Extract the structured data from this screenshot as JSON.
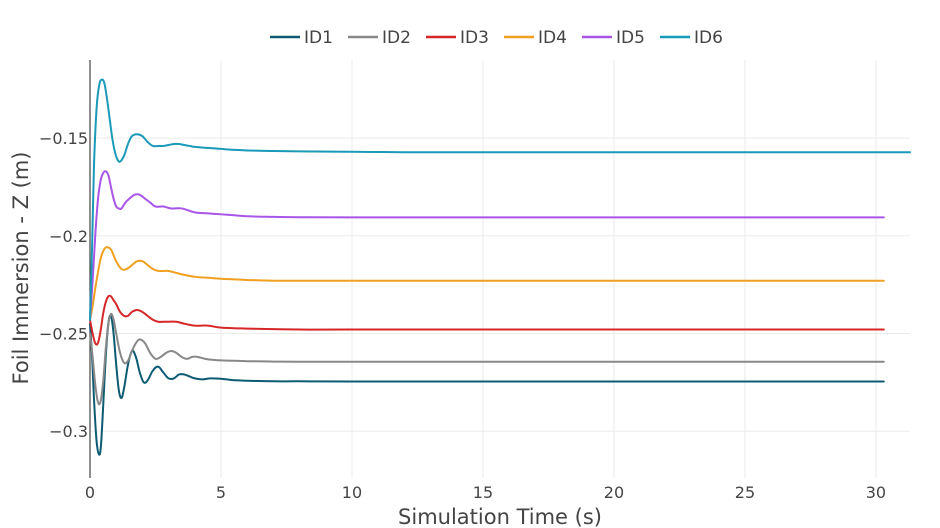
{
  "chart_data": {
    "type": "line",
    "xlabel": "Simulation Time (s)",
    "ylabel": "Foil Immersion - Z (m)",
    "xlim": [
      0,
      31.3
    ],
    "ylim": [
      -0.324,
      -0.11
    ],
    "x_ticks": [
      0,
      5,
      10,
      15,
      20,
      25,
      30
    ],
    "x_tick_labels": [
      "0",
      "5",
      "10",
      "15",
      "20",
      "25",
      "30"
    ],
    "y_ticks": [
      -0.15,
      -0.2,
      -0.25,
      -0.3
    ],
    "y_tick_labels": [
      "−0.15",
      "−0.2",
      "−0.25",
      "−0.3"
    ],
    "grid": true,
    "legend_position": "top-center",
    "series": [
      {
        "name": "ID1",
        "color": "#0d5a73",
        "x": [
          0,
          0.08,
          0.15,
          0.25,
          0.35,
          0.42,
          0.5,
          0.6,
          0.7,
          0.8,
          0.9,
          1.0,
          1.1,
          1.2,
          1.3,
          1.45,
          1.6,
          1.75,
          1.9,
          2.05,
          2.2,
          2.4,
          2.6,
          2.8,
          3.0,
          3.2,
          3.4,
          3.6,
          3.8,
          4.0,
          4.3,
          4.6,
          5.0,
          5.4,
          6.0,
          7.0,
          8.0,
          10.0,
          15.0,
          20.0,
          25.0,
          30.3
        ],
        "y": [
          -0.245,
          -0.262,
          -0.283,
          -0.305,
          -0.312,
          -0.307,
          -0.288,
          -0.262,
          -0.245,
          -0.241,
          -0.25,
          -0.266,
          -0.279,
          -0.283,
          -0.278,
          -0.266,
          -0.259,
          -0.262,
          -0.27,
          -0.275,
          -0.274,
          -0.269,
          -0.267,
          -0.27,
          -0.273,
          -0.273,
          -0.271,
          -0.271,
          -0.272,
          -0.273,
          -0.2735,
          -0.273,
          -0.2732,
          -0.2738,
          -0.2742,
          -0.2745,
          -0.2745,
          -0.2746,
          -0.2746,
          -0.2746,
          -0.2746,
          -0.2746
        ]
      },
      {
        "name": "ID2",
        "color": "#888888",
        "x": [
          0,
          0.1,
          0.2,
          0.3,
          0.4,
          0.5,
          0.6,
          0.7,
          0.8,
          0.9,
          1.0,
          1.15,
          1.3,
          1.45,
          1.6,
          1.75,
          1.9,
          2.1,
          2.3,
          2.5,
          2.7,
          2.9,
          3.1,
          3.3,
          3.5,
          3.7,
          3.9,
          4.1,
          4.4,
          4.7,
          5.0,
          5.5,
          6.0,
          7.0,
          8.0,
          10.0,
          15.0,
          20.0,
          25.0,
          30.3
        ],
        "y": [
          -0.25,
          -0.262,
          -0.276,
          -0.285,
          -0.285,
          -0.275,
          -0.258,
          -0.245,
          -0.24,
          -0.243,
          -0.25,
          -0.26,
          -0.265,
          -0.264,
          -0.259,
          -0.255,
          -0.253,
          -0.255,
          -0.26,
          -0.263,
          -0.262,
          -0.26,
          -0.259,
          -0.26,
          -0.262,
          -0.263,
          -0.262,
          -0.262,
          -0.263,
          -0.2635,
          -0.2638,
          -0.264,
          -0.2642,
          -0.2644,
          -0.2645,
          -0.2645,
          -0.2645,
          -0.2645,
          -0.2645,
          -0.2645
        ]
      },
      {
        "name": "ID3",
        "color": "#d62728",
        "x": [
          0,
          0.1,
          0.2,
          0.3,
          0.4,
          0.5,
          0.6,
          0.7,
          0.8,
          0.9,
          1.0,
          1.15,
          1.3,
          1.45,
          1.6,
          1.8,
          2.0,
          2.2,
          2.4,
          2.6,
          2.8,
          3.0,
          3.3,
          3.6,
          4.0,
          4.5,
          5.0,
          6.0,
          7.0,
          8.0,
          10.0,
          15.0,
          20.0,
          25.0,
          30.3
        ],
        "y": [
          -0.243,
          -0.25,
          -0.255,
          -0.255,
          -0.249,
          -0.24,
          -0.234,
          -0.231,
          -0.231,
          -0.233,
          -0.235,
          -0.239,
          -0.241,
          -0.241,
          -0.239,
          -0.238,
          -0.239,
          -0.241,
          -0.243,
          -0.244,
          -0.244,
          -0.244,
          -0.244,
          -0.245,
          -0.246,
          -0.246,
          -0.247,
          -0.2475,
          -0.2478,
          -0.248,
          -0.248,
          -0.248,
          -0.248,
          -0.248,
          -0.248
        ]
      },
      {
        "name": "ID4",
        "color": "#f0a020",
        "x": [
          0,
          0.1,
          0.2,
          0.3,
          0.4,
          0.5,
          0.6,
          0.7,
          0.8,
          0.9,
          1.0,
          1.2,
          1.4,
          1.6,
          1.8,
          2.0,
          2.2,
          2.4,
          2.6,
          2.8,
          3.0,
          3.3,
          3.6,
          4.0,
          4.5,
          5.0,
          5.5,
          6.0,
          7.0,
          8.0,
          10.0,
          15.0,
          20.0,
          25.0,
          30.3
        ],
        "y": [
          -0.243,
          -0.236,
          -0.227,
          -0.219,
          -0.212,
          -0.208,
          -0.206,
          -0.206,
          -0.207,
          -0.21,
          -0.213,
          -0.217,
          -0.217,
          -0.215,
          -0.213,
          -0.213,
          -0.215,
          -0.217,
          -0.218,
          -0.218,
          -0.218,
          -0.219,
          -0.22,
          -0.221,
          -0.2215,
          -0.222,
          -0.2223,
          -0.2226,
          -0.223,
          -0.223,
          -0.223,
          -0.223,
          -0.223,
          -0.223,
          -0.223
        ]
      },
      {
        "name": "ID5",
        "color": "#a855e8",
        "x": [
          0,
          0.1,
          0.2,
          0.3,
          0.4,
          0.5,
          0.6,
          0.7,
          0.8,
          0.9,
          1.0,
          1.1,
          1.2,
          1.35,
          1.5,
          1.7,
          1.9,
          2.1,
          2.3,
          2.5,
          2.8,
          3.1,
          3.5,
          4.0,
          4.5,
          5.0,
          5.5,
          6.0,
          7.0,
          8.0,
          10.0,
          15.0,
          20.0,
          25.0,
          30.3
        ],
        "y": [
          -0.243,
          -0.223,
          -0.2,
          -0.182,
          -0.172,
          -0.168,
          -0.167,
          -0.169,
          -0.175,
          -0.181,
          -0.185,
          -0.186,
          -0.186,
          -0.183,
          -0.181,
          -0.179,
          -0.179,
          -0.181,
          -0.183,
          -0.185,
          -0.185,
          -0.186,
          -0.186,
          -0.188,
          -0.1885,
          -0.189,
          -0.1895,
          -0.19,
          -0.1903,
          -0.1905,
          -0.1906,
          -0.1906,
          -0.1906,
          -0.1906,
          -0.1906
        ]
      },
      {
        "name": "ID6",
        "color": "#1a9ab8",
        "x": [
          0,
          0.08,
          0.15,
          0.25,
          0.35,
          0.45,
          0.55,
          0.65,
          0.75,
          0.85,
          0.95,
          1.05,
          1.15,
          1.3,
          1.45,
          1.6,
          1.8,
          2.0,
          2.2,
          2.4,
          2.6,
          2.8,
          3.0,
          3.2,
          3.4,
          3.6,
          3.8,
          4.0,
          4.5,
          5.0,
          5.5,
          6.0,
          7.0,
          8.0,
          10.0,
          12.0,
          15.0,
          20.0,
          25.0,
          31.3
        ],
        "y": [
          -0.243,
          -0.205,
          -0.165,
          -0.135,
          -0.123,
          -0.12,
          -0.122,
          -0.13,
          -0.14,
          -0.15,
          -0.157,
          -0.161,
          -0.162,
          -0.159,
          -0.153,
          -0.149,
          -0.148,
          -0.149,
          -0.152,
          -0.154,
          -0.154,
          -0.154,
          -0.1535,
          -0.153,
          -0.153,
          -0.1535,
          -0.154,
          -0.1545,
          -0.155,
          -0.1555,
          -0.156,
          -0.1563,
          -0.1566,
          -0.1568,
          -0.157,
          -0.1572,
          -0.1572,
          -0.1572,
          -0.1572,
          -0.1572
        ]
      }
    ]
  }
}
